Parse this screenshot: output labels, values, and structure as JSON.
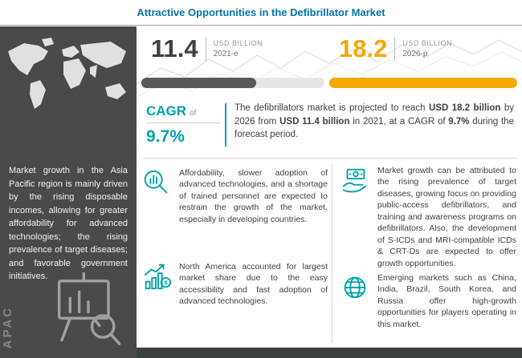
{
  "title": "Attractive Opportunities in the Defibrillator Market",
  "chart_data": {
    "type": "bar",
    "categories": [
      "2021-e",
      "2026-p"
    ],
    "values": [
      11.4,
      18.2
    ],
    "title": "Attractive Opportunities in the Defibrillator Market",
    "unit": "USD Billion",
    "cagr_percent": 9.7,
    "xlim": [
      0,
      18.2
    ],
    "legend": "none"
  },
  "sidebar": {
    "paragraph": "Market growth in the Asia Pacific region is mainly driven by the rising disposable incomes, allowing for greater affordability for advanced technologies; the rising prevalence of target diseases; and favorable government initiatives.",
    "region_label": "APAC"
  },
  "stats": {
    "current": {
      "value": "11.4",
      "unit": "USD BILLION",
      "year": "2021-e"
    },
    "projected": {
      "value": "18.2",
      "unit": "USD BILLION",
      "year": "2026-p"
    }
  },
  "cagr": {
    "label": "CAGR",
    "of": "of",
    "value": "9.7%"
  },
  "summary": {
    "part1": "The defibrillators market is projected to reach ",
    "bold1": "USD 18.2 billion",
    "part2": " by 2026 from ",
    "bold2": "USD 11.4 billion",
    "part3": " in 2021, at a CAGR of ",
    "bold3": "9.7%",
    "part4": " during the forecast period."
  },
  "insights": {
    "left": [
      {
        "icon": "magnifier-chart-icon",
        "text": "Affordability, slower adoption of advanced technologies, and a shortage of trained personnel are expected to restrain the growth of the market, especially in developing countries."
      },
      {
        "icon": "growth-chart-dollar-icon",
        "text": "North America accounted for largest market share due to the easy accessibility and fast adoption of advanced technologies."
      }
    ],
    "right": [
      {
        "icon": "hand-money-icon",
        "text": "Market growth can be attributed to the rising prevalence of target diseases, growing focus on providing public-access defibrillators, and training and awareness programs on defibrillators. Also, the development of S-ICDs and MRI-compatible ICDs & CRT-Ds are expected to offer growth opportunities."
      },
      {
        "icon": "globe-icon",
        "text": "Emerging markets such as China, India, Brazil, South Korea, and Russia offer high-growth opportunities for players operating in this market."
      }
    ]
  },
  "colors": {
    "title_blue": "#0076a8",
    "accent_teal": "#00a3ad",
    "accent_yellow": "#f5a800",
    "bar_gray": "#58595b",
    "sidebar_bg": "#4a4a4c"
  }
}
